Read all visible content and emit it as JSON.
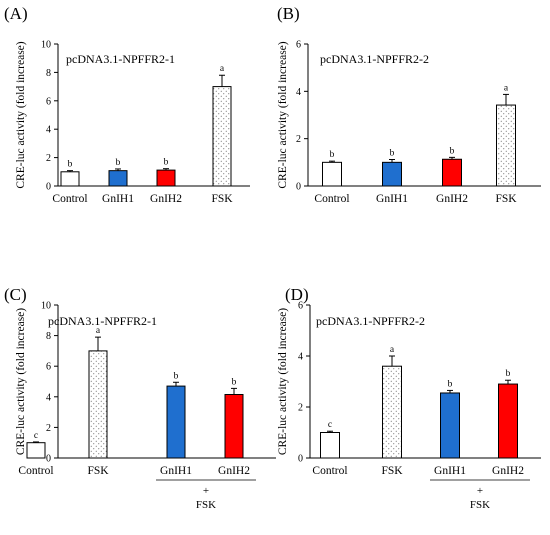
{
  "page": {
    "panel_letters": [
      "(A)",
      "(B)",
      "(C)",
      "(D)"
    ],
    "plus_sign": "+",
    "fsk_group_label": "FSK"
  },
  "colors": {
    "control": "#ffffff",
    "fsk": "#ffffff",
    "gnih1": "#1f6fcf",
    "gnih2": "#ff0000",
    "stroke": "#000000"
  },
  "chart_data": [
    {
      "type": "bar",
      "title": "pcDNA3.1-NPFFR2-1",
      "ylabel": "CRE-luc activity (fold increase)",
      "ylim": [
        0,
        10
      ],
      "yticks": [
        0,
        2,
        4,
        6,
        8,
        10
      ],
      "categories": [
        "Control",
        "GnIH1",
        "GnIH2",
        "FSK"
      ],
      "values": [
        1.0,
        1.08,
        1.12,
        7.0
      ],
      "errors": [
        0.08,
        0.12,
        0.1,
        0.8
      ],
      "significance": [
        "b",
        "b",
        "b",
        "a"
      ],
      "fills": [
        "white",
        "blue",
        "red",
        "dotted"
      ],
      "fsk_bracket": false
    },
    {
      "type": "bar",
      "title": "pcDNA3.1-NPFFR2-2",
      "ylabel": "CRE-luc activity (fold increase)",
      "ylim": [
        0,
        6
      ],
      "yticks": [
        0,
        2,
        4,
        6
      ],
      "categories": [
        "Control",
        "GnIH1",
        "GnIH2",
        "FSK"
      ],
      "values": [
        1.0,
        1.0,
        1.13,
        3.42
      ],
      "errors": [
        0.05,
        0.12,
        0.08,
        0.45
      ],
      "significance": [
        "b",
        "b",
        "b",
        "a"
      ],
      "fills": [
        "white",
        "blue",
        "red",
        "dotted"
      ],
      "fsk_bracket": false
    },
    {
      "type": "bar",
      "title": "pcDNA3.1-NPFFR2-1",
      "ylabel": "CRE-luc activity (fold increase)",
      "ylim": [
        0,
        10
      ],
      "yticks": [
        0,
        2,
        4,
        6,
        8,
        10
      ],
      "categories": [
        "Control",
        "FSK",
        "GnIH1",
        "GnIH2"
      ],
      "values": [
        1.0,
        7.0,
        4.7,
        4.15
      ],
      "errors": [
        0.05,
        0.9,
        0.25,
        0.4
      ],
      "significance": [
        "c",
        "a",
        "b",
        "b"
      ],
      "fills": [
        "white",
        "dotted",
        "blue",
        "red"
      ],
      "fsk_bracket": true
    },
    {
      "type": "bar",
      "title": "pcDNA3.1-NPFFR2-2",
      "ylabel": "CRE-luc activity (fold increase)",
      "ylim": [
        0,
        6
      ],
      "yticks": [
        0,
        2,
        4,
        6
      ],
      "categories": [
        "Control",
        "FSK",
        "GnIH1",
        "GnIH2"
      ],
      "values": [
        1.0,
        3.6,
        2.55,
        2.9
      ],
      "errors": [
        0.05,
        0.4,
        0.1,
        0.15
      ],
      "significance": [
        "c",
        "a",
        "b",
        "b"
      ],
      "fills": [
        "white",
        "dotted",
        "blue",
        "red"
      ],
      "fsk_bracket": true
    }
  ]
}
